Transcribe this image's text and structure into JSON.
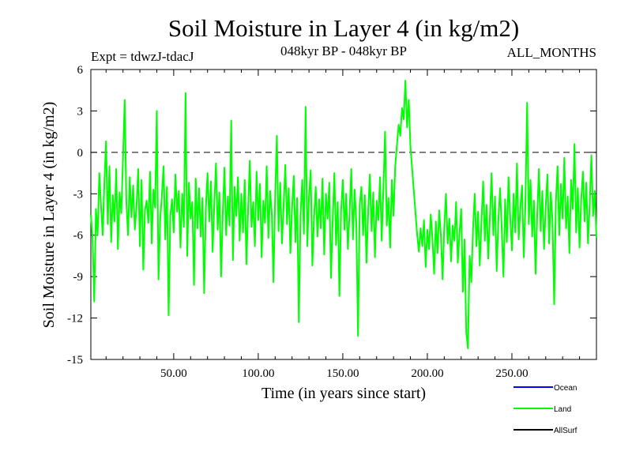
{
  "chart_data": {
    "type": "line",
    "title": "Soil Moisture in Layer 4 (in kg/m2)",
    "subtitle_left": "Expt = tdwzJ-tdacJ",
    "subtitle_center": "048kyr BP - 048kyr BP",
    "subtitle_right": "ALL_MONTHS",
    "xlabel": "Time (in years since start)",
    "ylabel": "Soil Moisture in Layer 4 (in kg/m2)",
    "xlim": [
      1,
      300
    ],
    "ylim": [
      -15,
      6
    ],
    "xticks": [
      50,
      100,
      150,
      200,
      250
    ],
    "xtick_labels": [
      "50.00",
      "100.00",
      "150.00",
      "200.00",
      "250.00"
    ],
    "yticks": [
      6,
      3,
      0,
      -3,
      -6,
      -9,
      -12,
      -15
    ],
    "ytick_labels": [
      "6",
      "3",
      "0",
      "-3",
      "-6",
      "-9",
      "-12",
      "-15"
    ],
    "zero_line": true,
    "series": [
      {
        "name": "Ocean",
        "color": "#0000ff",
        "values": []
      },
      {
        "name": "Land",
        "color": "#00ff00",
        "values": [
          -4.5,
          -6.2,
          -10.8,
          -4.1,
          -6.0,
          -1.5,
          -3.8,
          -6.0,
          -2.2,
          0.8,
          -5.2,
          -1.0,
          -6.5,
          -3.1,
          -5.0,
          -1.2,
          -7.0,
          -2.9,
          -4.4,
          -0.5,
          3.8,
          -3.6,
          -6.0,
          -1.8,
          -4.7,
          -2.4,
          -5.6,
          -3.9,
          -1.2,
          -6.8,
          -2.0,
          -8.5,
          -4.2,
          -3.5,
          -5.1,
          -1.4,
          -6.6,
          -2.7,
          -4.0,
          3.0,
          -9.2,
          -4.9,
          -3.1,
          -1.0,
          -6.3,
          -2.5,
          -11.8,
          -4.6,
          -3.4,
          -5.8,
          -1.6,
          -4.3,
          -2.8,
          -6.9,
          -3.0,
          -5.4,
          4.3,
          -7.5,
          -2.2,
          -4.8,
          -3.6,
          -9.6,
          -1.9,
          -5.5,
          -2.6,
          -6.1,
          -3.3,
          -10.2,
          -4.0,
          -1.5,
          -5.0,
          -2.1,
          -7.2,
          -3.8,
          -0.8,
          -5.6,
          -2.9,
          -9.0,
          -4.4,
          -1.1,
          -6.0,
          -3.2,
          -5.3,
          2.3,
          -7.8,
          -2.5,
          -4.6,
          -1.8,
          -6.4,
          -3.0,
          -5.8,
          -2.0,
          -8.1,
          -4.1,
          -0.6,
          -5.4,
          -3.6,
          -6.8,
          -1.4,
          -4.9,
          -2.3,
          -7.6,
          -3.5,
          -5.1,
          -1.0,
          -6.2,
          -2.8,
          -4.4,
          -9.4,
          -3.1,
          1.2,
          -5.7,
          -2.2,
          -6.6,
          -3.9,
          -0.9,
          -5.2,
          -2.6,
          -7.3,
          -4.0,
          -1.7,
          -6.5,
          -3.3,
          -12.3,
          -4.5,
          -2.0,
          -5.9,
          3.3,
          -6.8,
          -3.2,
          -1.3,
          -8.2,
          -4.7,
          -2.5,
          -6.1,
          -3.4,
          -5.5,
          -1.9,
          -7.4,
          -3.0,
          -4.8,
          -2.2,
          -9.1,
          -5.0,
          -1.5,
          -6.7,
          -3.6,
          -10.4,
          -4.2,
          -2.0,
          -5.6,
          -3.0,
          -7.0,
          -4.4,
          -1.2,
          -6.3,
          -2.7,
          -5.1,
          -13.3,
          -3.8,
          -2.5,
          -6.0,
          -3.1,
          -8.0,
          -4.3,
          -1.6,
          -5.7,
          -2.9,
          -7.6,
          -3.5,
          -4.9,
          -1.8,
          -6.4,
          -2.6,
          1.5,
          -5.3,
          -3.3,
          -6.9,
          -2.0,
          -4.6,
          -1.0,
          0.5,
          2.0,
          1.2,
          3.2,
          2.4,
          5.2,
          1.8,
          3.8,
          0.4,
          -1.2,
          -2.8,
          -4.4,
          -6.0,
          -7.2,
          -5.5,
          -6.8,
          -4.9,
          -8.3,
          -5.6,
          -7.0,
          -4.5,
          -6.2,
          -8.8,
          -5.0,
          -7.3,
          -4.2,
          -6.0,
          -9.2,
          -5.4,
          -3.0,
          -6.6,
          -4.8,
          -7.9,
          -5.3,
          -6.4,
          -3.6,
          -8.0,
          -5.9,
          -4.1,
          -10.1,
          -6.3,
          -13.0,
          -14.2,
          -7.5,
          -9.4,
          -5.6,
          -3.0,
          -6.8,
          -4.3,
          -8.2,
          -5.0,
          -2.1,
          -6.4,
          -3.8,
          -7.7,
          -4.6,
          -1.5,
          -6.0,
          -3.2,
          -8.6,
          -4.9,
          -2.6,
          -5.6,
          -9.0,
          -3.4,
          -6.5,
          -1.8,
          -4.7,
          -7.1,
          -3.0,
          -5.8,
          -0.8,
          -6.3,
          -4.0,
          -2.4,
          -7.6,
          -3.7,
          3.6,
          -5.2,
          -2.0,
          -6.1,
          -3.5,
          -8.8,
          -4.4,
          -1.2,
          -5.7,
          -2.8,
          -7.0,
          -3.9,
          -1.6,
          -6.6,
          -2.9,
          -5.0,
          -11.0,
          -3.6,
          -1.0,
          -6.0,
          -2.3,
          -4.8,
          -0.4,
          -5.5,
          -3.2,
          -7.3,
          -2.0,
          -4.1,
          0.6,
          -5.8,
          -2.6,
          -6.9,
          -3.4,
          -1.4,
          -5.0,
          -2.2,
          -6.6,
          -3.8,
          -0.2,
          -4.6,
          -2.8,
          -6.2
        ]
      },
      {
        "name": "AllSurf",
        "color": "#000000",
        "values": []
      }
    ],
    "legend_position": "bottom-right"
  }
}
